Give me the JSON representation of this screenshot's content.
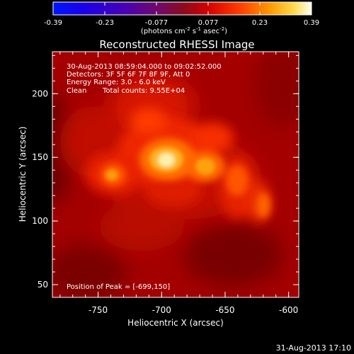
{
  "colorbar": {
    "ticks": [
      "-0.39",
      "-0.23",
      "-0.077",
      "0.077",
      "0.23",
      "0.39"
    ],
    "unit_label": "(photons cm",
    "unit_exp1": "-2",
    "unit_mid1": " s",
    "unit_exp2": "-1",
    "unit_mid2": " asec",
    "unit_exp3": "-2",
    "unit_end": ")"
  },
  "title": "Reconstructed RHESSI Image",
  "info": {
    "time_range": "30-Aug-2013 08:59:04.000 to 09:02:52.000",
    "detectors": "Detectors: 3F 5F 6F 7F 8F 9F, Att 0",
    "energy": "Energy Range: 3.0 - 6.0 keV",
    "algorithm": "Clean",
    "counts": "Total counts: 9.55E+04"
  },
  "peak": "Position of Peak = [-699,150]",
  "axes": {
    "xlabel": "Heliocentric X (arcsec)",
    "ylabel": "Heliocentric Y (arcsec)",
    "xticks": [
      {
        "label": "-750",
        "value": -750
      },
      {
        "label": "-700",
        "value": -700
      },
      {
        "label": "-650",
        "value": -650
      },
      {
        "label": "-600",
        "value": -600
      }
    ],
    "yticks": [
      {
        "label": "50",
        "value": 50
      },
      {
        "label": "100",
        "value": 100
      },
      {
        "label": "150",
        "value": 150
      },
      {
        "label": "200",
        "value": 200
      }
    ],
    "xlim": [
      -786,
      -592
    ],
    "ylim": [
      40,
      233
    ]
  },
  "footer": "31-Aug-2013 17:10",
  "colors": {
    "background": "#000000",
    "foreground": "#ffffff",
    "image_base": "#a40000"
  }
}
